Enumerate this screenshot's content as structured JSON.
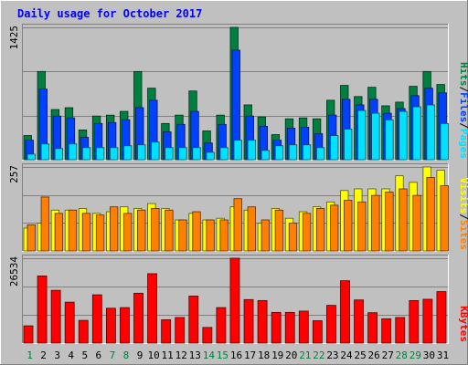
{
  "header": {
    "title": "Daily usage for October 2017"
  },
  "colors": {
    "background": "#c0c0c0",
    "plot_bg": "#c0c0c0",
    "title": "#0000ff",
    "hits": "#008040",
    "files": "#0040ff",
    "pages": "#00e0ff",
    "visits": "#ffff00",
    "sites": "#ff8000",
    "kbytes": "#ff0000",
    "weekend_day": "#008040",
    "weekday": "#000000"
  },
  "chart_data": [
    {
      "type": "bar",
      "title": "Daily usage for October 2017",
      "ymax_label": "1425",
      "ylim": [
        0,
        1425
      ],
      "legend": [
        {
          "label": "Pages",
          "color": "#00e0ff"
        },
        {
          "label": "Files",
          "color": "#0040ff"
        },
        {
          "label": "Hits",
          "color": "#008040"
        }
      ],
      "categories": [
        "1",
        "2",
        "3",
        "4",
        "5",
        "6",
        "7",
        "8",
        "9",
        "10",
        "11",
        "12",
        "13",
        "14",
        "15",
        "16",
        "17",
        "18",
        "19",
        "20",
        "21",
        "22",
        "23",
        "24",
        "25",
        "26",
        "27",
        "28",
        "29",
        "30",
        "31"
      ],
      "series": [
        {
          "name": "Hits",
          "values": [
            260,
            950,
            540,
            560,
            320,
            470,
            480,
            520,
            950,
            770,
            390,
            480,
            740,
            310,
            480,
            1425,
            590,
            460,
            270,
            440,
            450,
            440,
            640,
            800,
            680,
            780,
            580,
            620,
            790,
            950,
            810
          ]
        },
        {
          "name": "Files",
          "values": [
            210,
            760,
            470,
            450,
            240,
            390,
            400,
            430,
            560,
            640,
            300,
            380,
            520,
            180,
            380,
            1180,
            470,
            360,
            210,
            340,
            350,
            280,
            480,
            650,
            590,
            650,
            500,
            550,
            690,
            770,
            720
          ]
        },
        {
          "name": "Pages",
          "values": [
            60,
            170,
            120,
            170,
            130,
            130,
            130,
            150,
            160,
            190,
            130,
            130,
            130,
            80,
            130,
            210,
            210,
            100,
            150,
            160,
            160,
            130,
            260,
            330,
            530,
            500,
            430,
            520,
            570,
            590,
            390
          ]
        }
      ]
    },
    {
      "type": "bar",
      "ymax_label": "257",
      "ylim": [
        0,
        257
      ],
      "legend": [
        {
          "label": "Sites",
          "color": "#ff8000"
        },
        {
          "label": "Visits",
          "color": "#ffff00"
        }
      ],
      "categories": [
        "1",
        "2",
        "3",
        "4",
        "5",
        "6",
        "7",
        "8",
        "9",
        "10",
        "11",
        "12",
        "13",
        "14",
        "15",
        "16",
        "17",
        "18",
        "19",
        "20",
        "21",
        "22",
        "23",
        "24",
        "25",
        "26",
        "27",
        "28",
        "29",
        "30",
        "31"
      ],
      "series": [
        {
          "name": "Visits",
          "values": [
            70,
            85,
            125,
            125,
            130,
            115,
            120,
            135,
            130,
            145,
            130,
            95,
            115,
            95,
            100,
            135,
            125,
            85,
            130,
            100,
            120,
            135,
            150,
            185,
            190,
            190,
            190,
            230,
            210,
            257,
            247
          ]
        },
        {
          "name": "Sites",
          "values": [
            80,
            165,
            115,
            125,
            115,
            110,
            135,
            115,
            125,
            130,
            125,
            95,
            120,
            95,
            95,
            160,
            135,
            95,
            125,
            85,
            115,
            130,
            140,
            155,
            150,
            170,
            180,
            190,
            170,
            225,
            200
          ]
        }
      ]
    },
    {
      "type": "bar",
      "ymax_label": "26534",
      "ylim": [
        0,
        26534
      ],
      "legend": [
        {
          "label": "KBytes",
          "color": "#ff0000"
        }
      ],
      "categories": [
        "1",
        "2",
        "3",
        "4",
        "5",
        "6",
        "7",
        "8",
        "9",
        "10",
        "11",
        "12",
        "13",
        "14",
        "15",
        "16",
        "17",
        "18",
        "19",
        "20",
        "21",
        "22",
        "23",
        "24",
        "25",
        "26",
        "27",
        "28",
        "29",
        "30",
        "31"
      ],
      "series": [
        {
          "name": "KBytes",
          "values": [
            5400,
            21000,
            16500,
            12800,
            7100,
            15100,
            10900,
            11100,
            15600,
            21700,
            7300,
            8000,
            14700,
            4900,
            11100,
            26534,
            13600,
            13300,
            9600,
            9600,
            10000,
            7000,
            11800,
            19500,
            13500,
            9500,
            7600,
            8000,
            13300,
            13700,
            16100
          ]
        }
      ]
    }
  ]
}
